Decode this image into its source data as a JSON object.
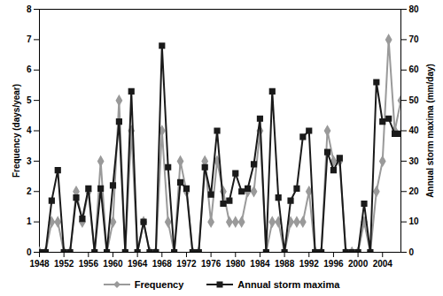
{
  "chart_data": {
    "type": "line",
    "x": [
      1948,
      1949,
      1950,
      1951,
      1952,
      1953,
      1954,
      1955,
      1956,
      1957,
      1958,
      1959,
      1960,
      1961,
      1962,
      1963,
      1964,
      1965,
      1966,
      1967,
      1968,
      1969,
      1970,
      1971,
      1972,
      1973,
      1974,
      1975,
      1976,
      1977,
      1978,
      1979,
      1980,
      1981,
      1982,
      1983,
      1984,
      1985,
      1986,
      1987,
      1988,
      1989,
      1990,
      1991,
      1992,
      1993,
      1994,
      1995,
      1996,
      1997,
      1998,
      1999,
      2000,
      2001,
      2002,
      2003,
      2004,
      2005,
      2006,
      2007
    ],
    "series": [
      {
        "name": "Frequency",
        "color": "#9a9a9a",
        "marker": "diamond",
        "axis": "y",
        "values": [
          0,
          0,
          1,
          1,
          0,
          0,
          2,
          1,
          2,
          0,
          3,
          0,
          1,
          5,
          0,
          4,
          0,
          1,
          0,
          0,
          4,
          1,
          0,
          3,
          2,
          0,
          0,
          3,
          1,
          3,
          2,
          1,
          1,
          1,
          2,
          2,
          4,
          0,
          1,
          1,
          0,
          1,
          1,
          1,
          2,
          0,
          0,
          4,
          3,
          3,
          0,
          0,
          0,
          1,
          0,
          2,
          3,
          7,
          4,
          5
        ]
      },
      {
        "name": "Annual storm maxima",
        "color": "#1a1a1a",
        "marker": "square",
        "axis": "y2",
        "values": [
          0,
          0,
          17,
          27,
          0,
          0,
          18,
          11,
          21,
          0,
          21,
          0,
          22,
          43,
          0,
          53,
          0,
          10,
          0,
          0,
          68,
          28,
          0,
          23,
          21,
          0,
          0,
          28,
          19,
          40,
          16,
          17,
          26,
          20,
          21,
          29,
          44,
          0,
          53,
          18,
          0,
          17,
          21,
          38,
          40,
          0,
          0,
          33,
          27,
          31,
          0,
          0,
          0,
          16,
          0,
          56,
          43,
          44,
          39,
          39
        ]
      }
    ],
    "xlim": [
      1948,
      2007
    ],
    "xticks": [
      1948,
      1952,
      1956,
      1960,
      1964,
      1968,
      1972,
      1976,
      1980,
      1984,
      1988,
      1992,
      1996,
      2000,
      2004
    ],
    "ylim": [
      0,
      8
    ],
    "yticks": [
      0,
      1,
      2,
      3,
      4,
      5,
      6,
      7,
      8
    ],
    "y2lim": [
      0,
      80
    ],
    "y2ticks": [
      0,
      10,
      20,
      30,
      40,
      50,
      60,
      70,
      80
    ],
    "y_label": "Frequency (days/year)",
    "y2_label": "Annual storm maxima (mm/day)",
    "legend": "bottom",
    "grid": false
  }
}
